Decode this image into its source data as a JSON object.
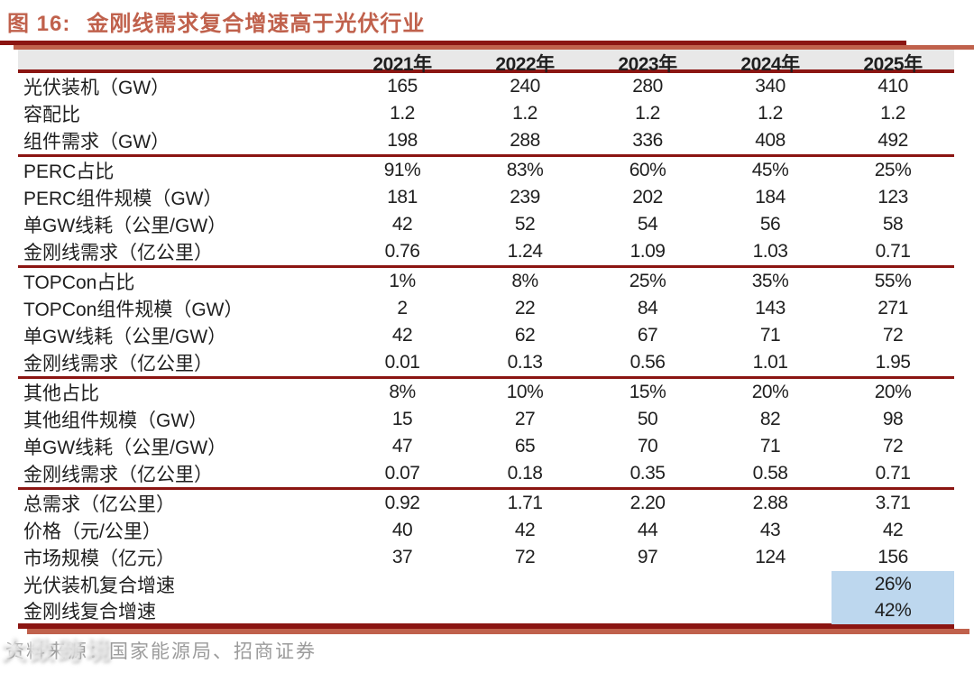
{
  "figure": {
    "label": "图 16:",
    "title": "金刚线需求复合增速高于光伏行业"
  },
  "table": {
    "year_headers": [
      "2021年",
      "2022年",
      "2023年",
      "2024年",
      "2025年"
    ],
    "sections": [
      {
        "rows": [
          {
            "label": "光伏装机（GW）",
            "values": [
              "165",
              "240",
              "280",
              "340",
              "410"
            ]
          },
          {
            "label": "容配比",
            "values": [
              "1.2",
              "1.2",
              "1.2",
              "1.2",
              "1.2"
            ]
          },
          {
            "label": "组件需求（GW）",
            "values": [
              "198",
              "288",
              "336",
              "408",
              "492"
            ]
          }
        ]
      },
      {
        "rows": [
          {
            "label": "PERC占比",
            "values": [
              "91%",
              "83%",
              "60%",
              "45%",
              "25%"
            ]
          },
          {
            "label": "PERC组件规模（GW）",
            "values": [
              "181",
              "239",
              "202",
              "184",
              "123"
            ]
          },
          {
            "label": "单GW线耗（公里/GW）",
            "values": [
              "42",
              "52",
              "54",
              "56",
              "58"
            ]
          },
          {
            "label": "金刚线需求（亿公里）",
            "values": [
              "0.76",
              "1.24",
              "1.09",
              "1.03",
              "0.71"
            ]
          }
        ]
      },
      {
        "rows": [
          {
            "label": "TOPCon占比",
            "values": [
              "1%",
              "8%",
              "25%",
              "35%",
              "55%"
            ]
          },
          {
            "label": "TOPCon组件规模（GW）",
            "values": [
              "2",
              "22",
              "84",
              "143",
              "271"
            ]
          },
          {
            "label": "单GW线耗（公里/GW）",
            "values": [
              "42",
              "62",
              "67",
              "71",
              "72"
            ]
          },
          {
            "label": "金刚线需求（亿公里）",
            "values": [
              "0.01",
              "0.13",
              "0.56",
              "1.01",
              "1.95"
            ]
          }
        ]
      },
      {
        "rows": [
          {
            "label": "其他占比",
            "values": [
              "8%",
              "10%",
              "15%",
              "20%",
              "20%"
            ]
          },
          {
            "label": "其他组件规模（GW）",
            "values": [
              "15",
              "27",
              "50",
              "82",
              "98"
            ]
          },
          {
            "label": "单GW线耗（公里/GW）",
            "values": [
              "47",
              "65",
              "70",
              "71",
              "72"
            ]
          },
          {
            "label": "金刚线需求（亿公里）",
            "values": [
              "0.07",
              "0.18",
              "0.35",
              "0.58",
              "0.71"
            ]
          }
        ]
      },
      {
        "rows": [
          {
            "label": "总需求（亿公里）",
            "values": [
              "0.92",
              "1.71",
              "2.20",
              "2.88",
              "3.71"
            ]
          },
          {
            "label": "价格（元/公里）",
            "values": [
              "40",
              "42",
              "44",
              "43",
              "42"
            ]
          },
          {
            "label": "市场规模（亿元）",
            "values": [
              "37",
              "72",
              "97",
              "124",
              "156"
            ]
          }
        ]
      }
    ],
    "growth_rows": [
      {
        "label": "光伏装机复合增速",
        "value": "26%"
      },
      {
        "label": "金刚线复合增速",
        "value": "42%"
      }
    ]
  },
  "source": "资料来源：国家能源局、招商证券",
  "watermark": "大数跨境",
  "colors": {
    "accent": "#c0614c",
    "dark_rule": "#8b1512",
    "header_gray": "#e8e8e8",
    "highlight_blue": "#bdd7ee",
    "source_gray": "#9b9b9b"
  }
}
